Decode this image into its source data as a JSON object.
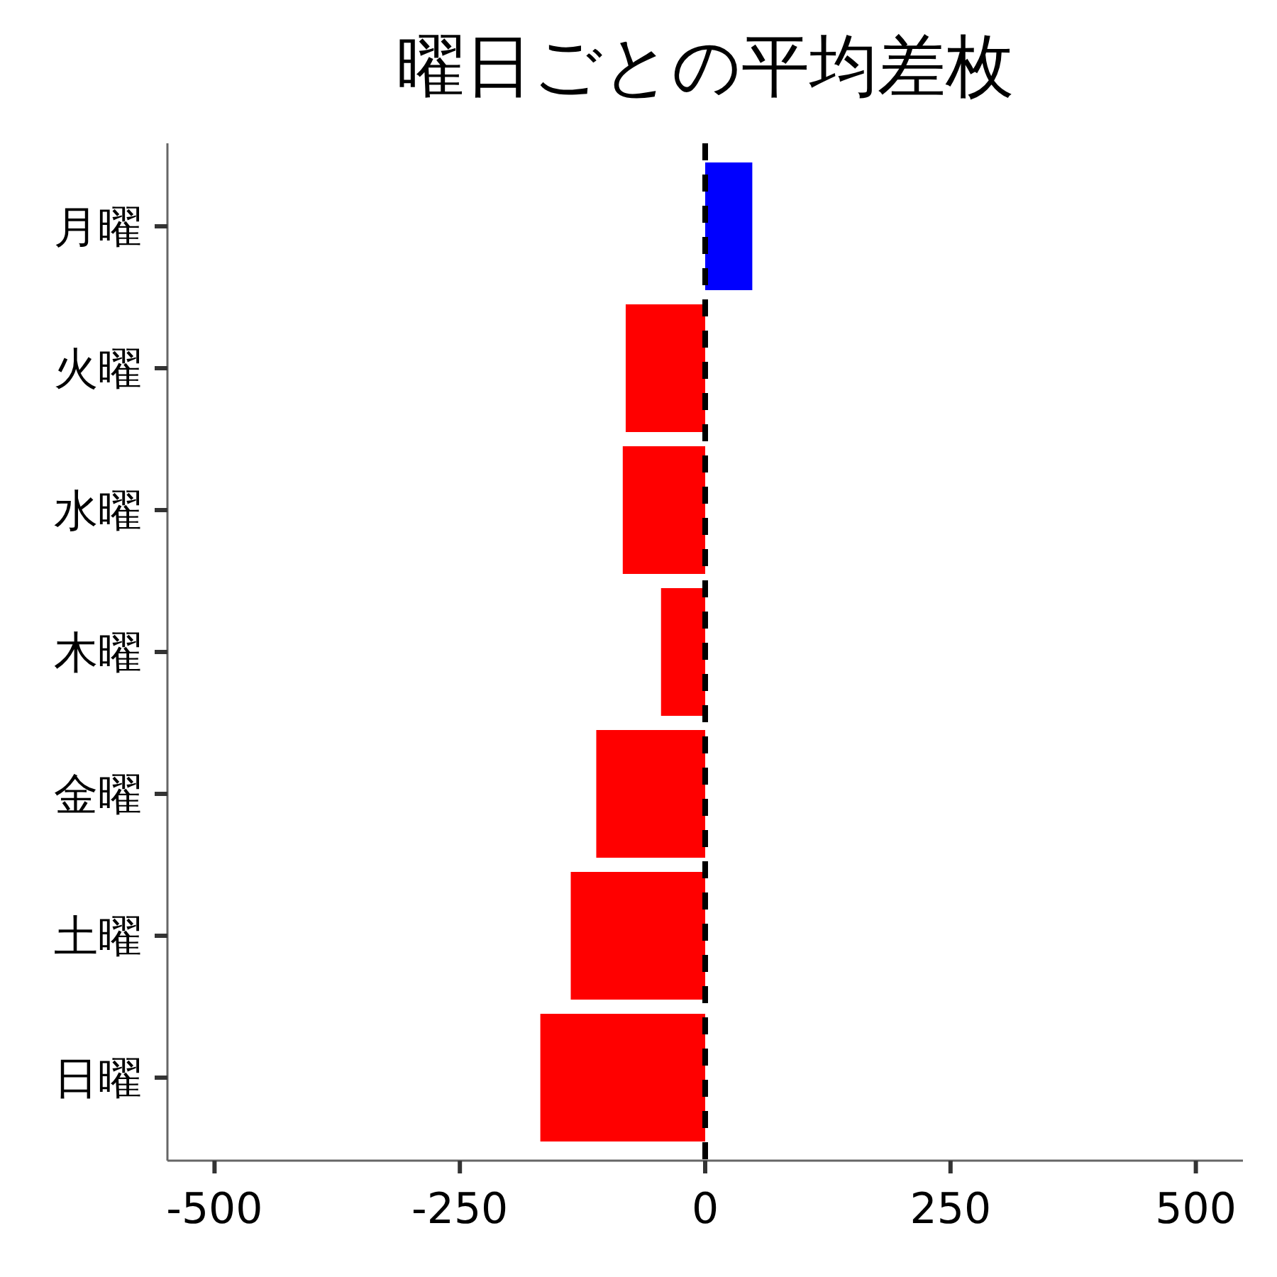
{
  "chart_data": {
    "type": "bar",
    "orientation": "horizontal",
    "title": "曜日ごとの平均差枚",
    "categories": [
      "月曜",
      "火曜",
      "水曜",
      "木曜",
      "金曜",
      "土曜",
      "日曜"
    ],
    "values": [
      48,
      -81,
      -84,
      -45,
      -111,
      -137,
      -168
    ],
    "colors": [
      "#0000ff",
      "#ff0000",
      "#ff0000",
      "#ff0000",
      "#ff0000",
      "#ff0000",
      "#ff0000"
    ],
    "xlim": [
      -548,
      548
    ],
    "xticks": [
      -500,
      -250,
      0,
      250,
      500
    ],
    "ref_lines": [
      {
        "axis": "x",
        "value": 0,
        "color": "#000000",
        "line_style": "dashed"
      }
    ]
  }
}
